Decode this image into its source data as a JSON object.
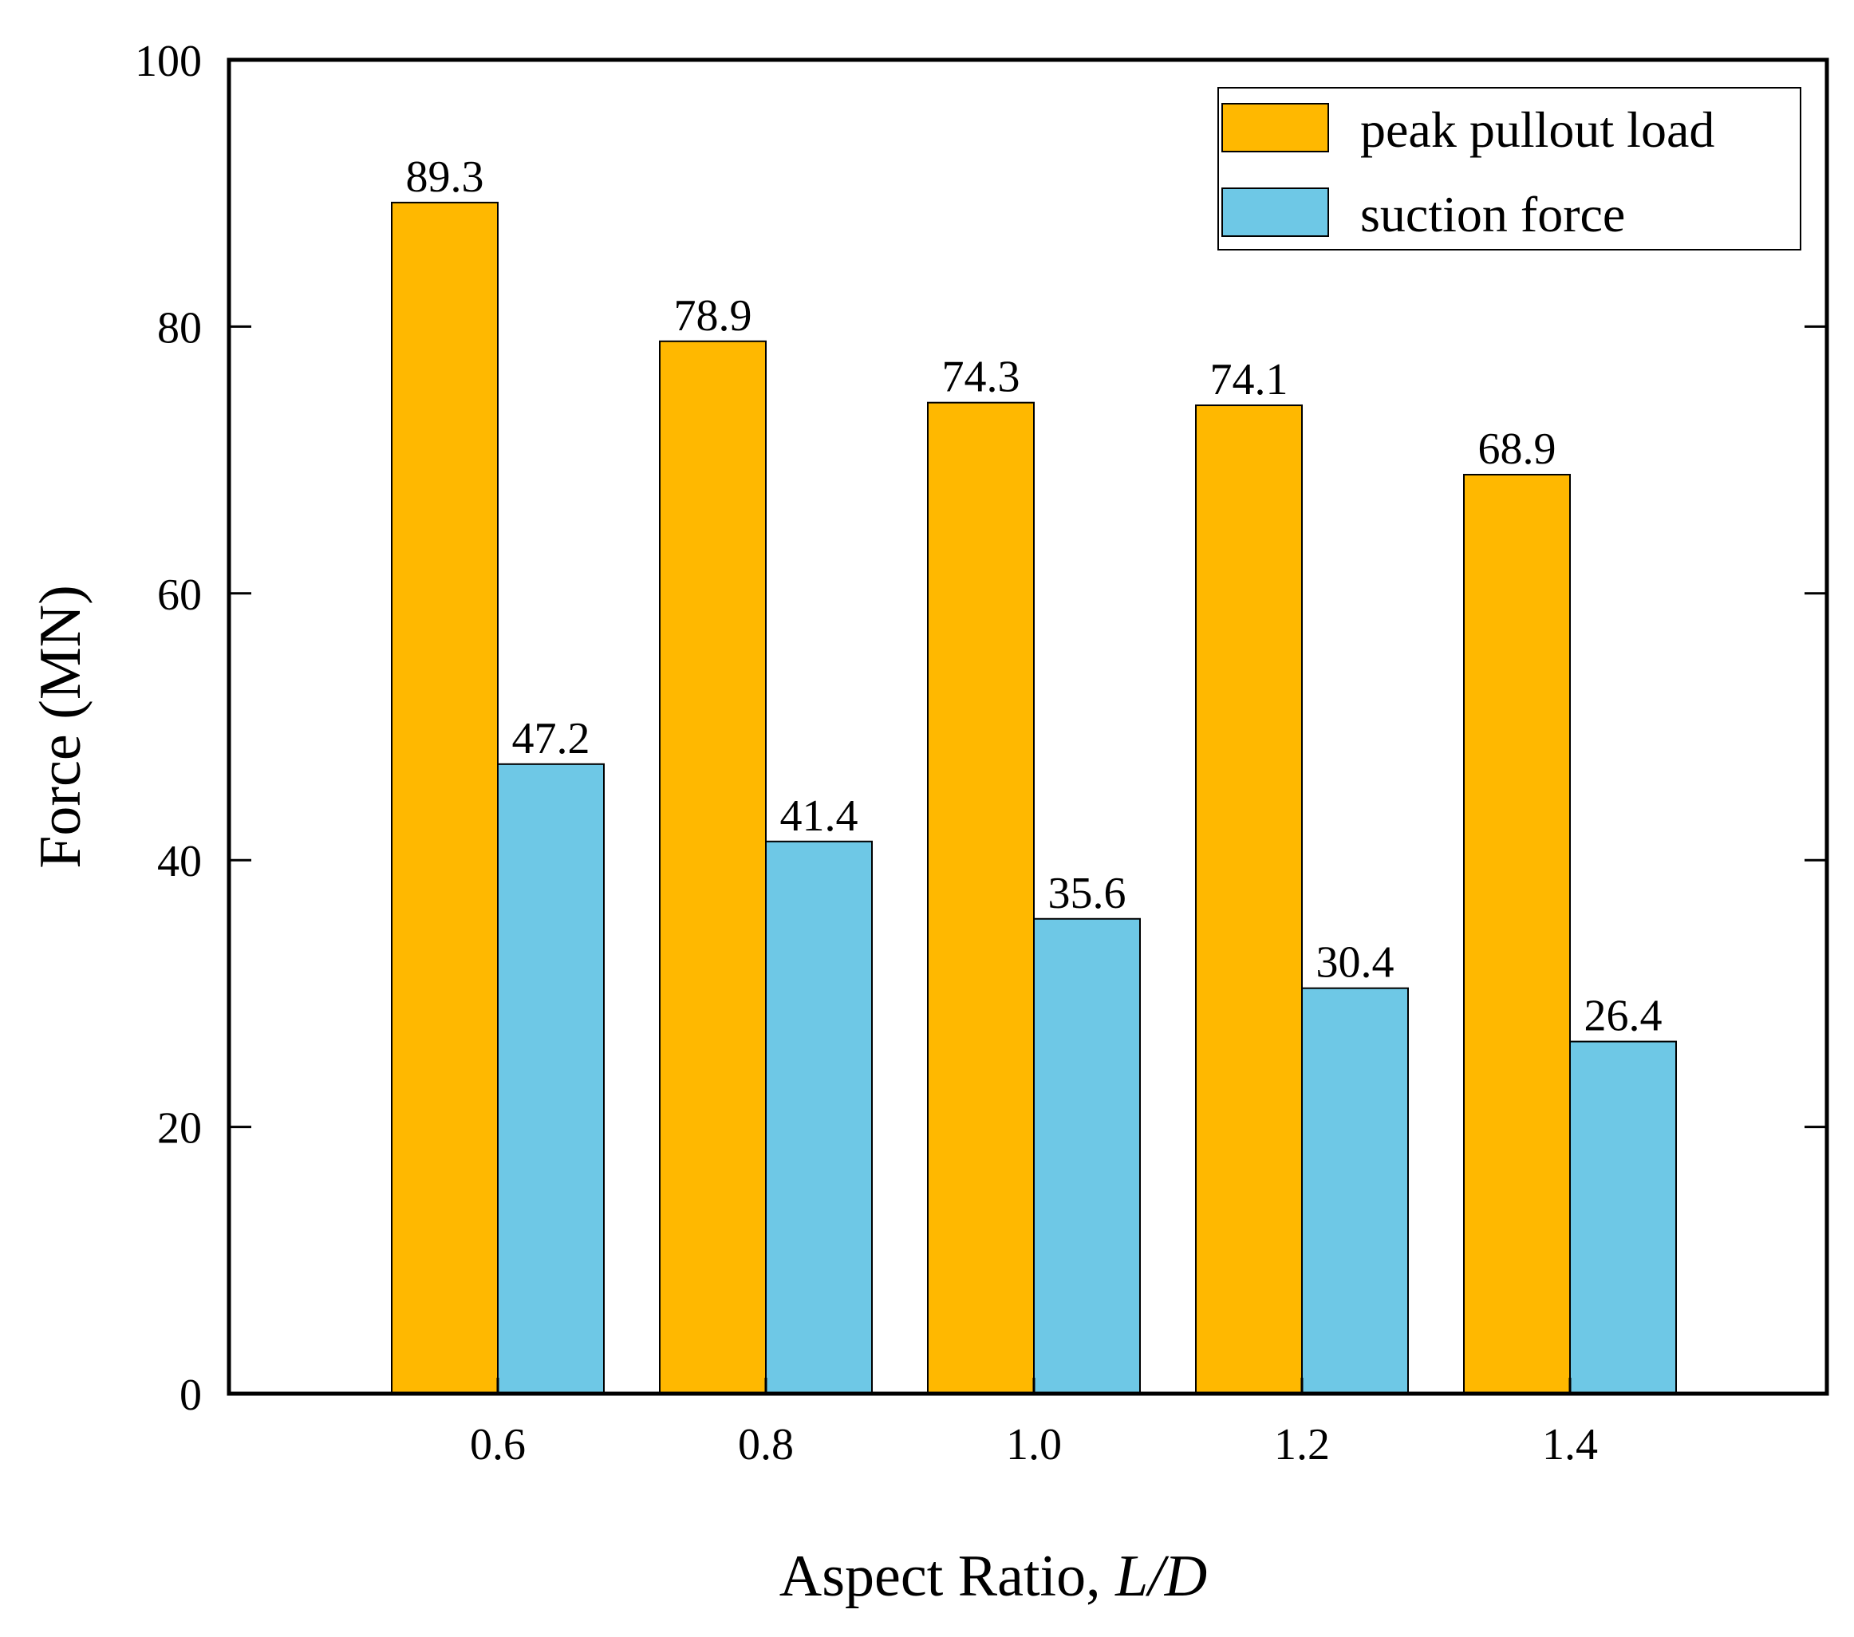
{
  "chart_data": {
    "type": "bar",
    "categories": [
      "0.6",
      "0.8",
      "1.0",
      "1.2",
      "1.4"
    ],
    "series": [
      {
        "name": "peak pullout load",
        "values": [
          89.3,
          78.9,
          74.3,
          74.1,
          68.9
        ],
        "labels": [
          "89.3",
          "78.9",
          "74.3",
          "74.1",
          "68.9"
        ],
        "color": "#FFB800"
      },
      {
        "name": "suction force",
        "values": [
          47.2,
          41.4,
          35.6,
          30.4,
          26.4
        ],
        "labels": [
          "47.2",
          "41.4",
          "35.6",
          "30.4",
          "26.4"
        ],
        "color": "#6EC8E6"
      }
    ],
    "xlabel": "Aspect Ratio, ",
    "xlabel_italic": "L/D",
    "ylabel": "Force (MN)",
    "ylim": [
      0,
      100
    ],
    "yticks": [
      0,
      20,
      40,
      60,
      80,
      100
    ],
    "legend_position": "top-right",
    "grid": false
  }
}
